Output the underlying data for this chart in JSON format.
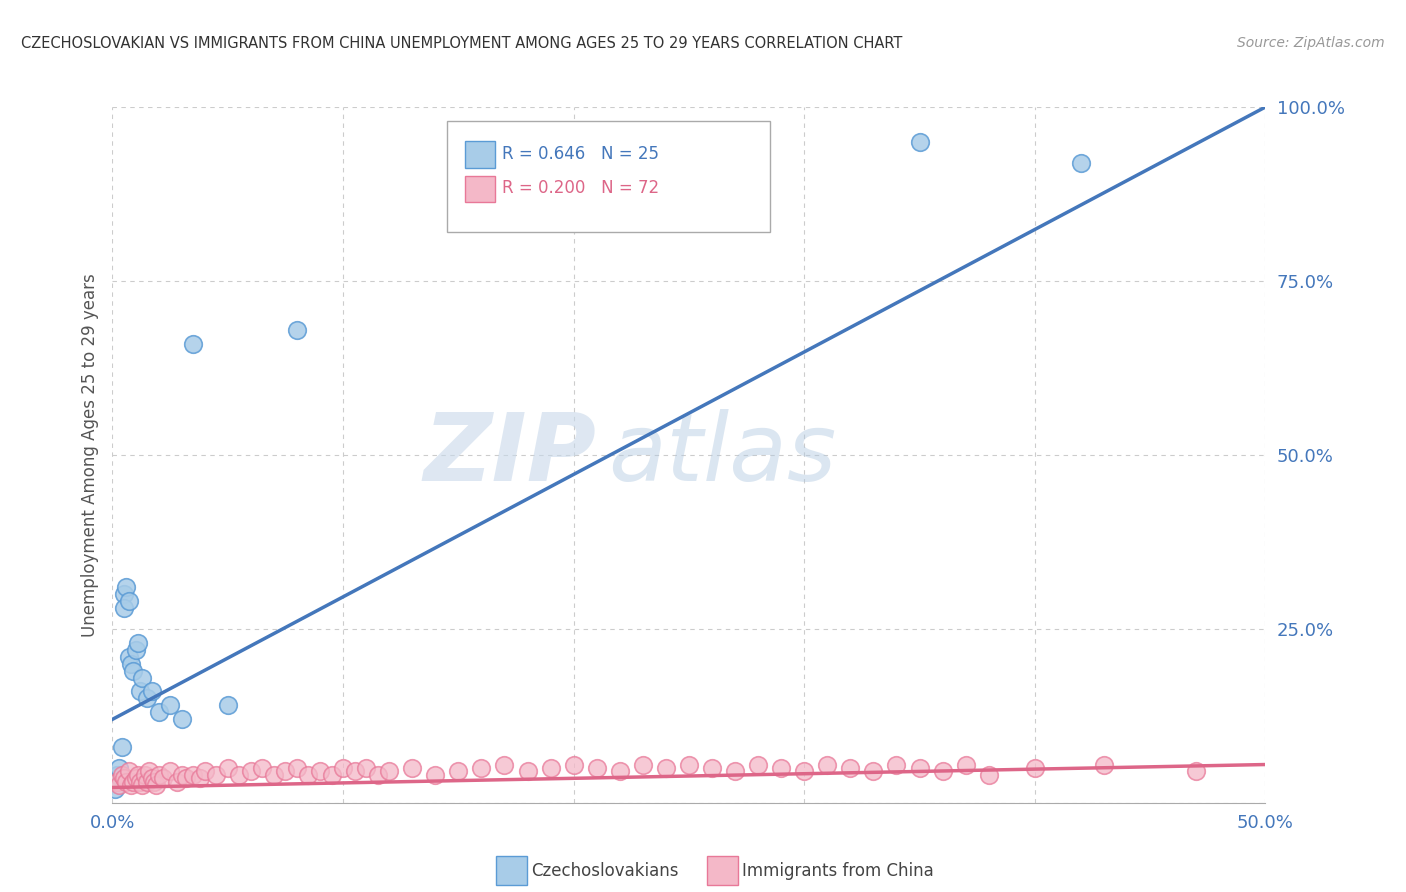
{
  "title": "CZECHOSLOVAKIAN VS IMMIGRANTS FROM CHINA UNEMPLOYMENT AMONG AGES 25 TO 29 YEARS CORRELATION CHART",
  "source": "Source: ZipAtlas.com",
  "ylabel": "Unemployment Among Ages 25 to 29 years",
  "xlim": [
    0.0,
    0.5
  ],
  "ylim": [
    0.0,
    1.0
  ],
  "xticks": [
    0.0,
    0.5
  ],
  "yticks": [
    0.25,
    0.5,
    0.75,
    1.0
  ],
  "xtick_labels": [
    "0.0%",
    "50.0%"
  ],
  "ytick_labels": [
    "25.0%",
    "50.0%",
    "75.0%",
    "100.0%"
  ],
  "blue_R": 0.646,
  "blue_N": 25,
  "pink_R": 0.2,
  "pink_N": 72,
  "blue_color": "#a8cce8",
  "pink_color": "#f4b8c8",
  "blue_edge_color": "#5b9bd5",
  "pink_edge_color": "#e87898",
  "blue_line_color": "#4477bb",
  "pink_line_color": "#dd6688",
  "watermark_zip": "ZIP",
  "watermark_atlas": "atlas",
  "legend_label_blue": "Czechoslovakians",
  "legend_label_pink": "Immigrants from China",
  "blue_line_x0": 0.0,
  "blue_line_y0": 0.12,
  "blue_line_x1": 0.5,
  "blue_line_y1": 1.0,
  "pink_line_x0": 0.0,
  "pink_line_y0": 0.022,
  "pink_line_x1": 0.5,
  "pink_line_y1": 0.055,
  "blue_points_x": [
    0.001,
    0.002,
    0.003,
    0.004,
    0.005,
    0.005,
    0.006,
    0.007,
    0.007,
    0.008,
    0.009,
    0.01,
    0.011,
    0.012,
    0.013,
    0.015,
    0.017,
    0.02,
    0.025,
    0.03,
    0.035,
    0.05,
    0.08,
    0.35,
    0.42
  ],
  "blue_points_y": [
    0.02,
    0.04,
    0.05,
    0.08,
    0.3,
    0.28,
    0.31,
    0.29,
    0.21,
    0.2,
    0.19,
    0.22,
    0.23,
    0.16,
    0.18,
    0.15,
    0.16,
    0.13,
    0.14,
    0.12,
    0.66,
    0.14,
    0.68,
    0.95,
    0.92
  ],
  "pink_points_x": [
    0.002,
    0.003,
    0.004,
    0.005,
    0.006,
    0.007,
    0.008,
    0.009,
    0.01,
    0.011,
    0.012,
    0.013,
    0.014,
    0.015,
    0.016,
    0.017,
    0.018,
    0.019,
    0.02,
    0.022,
    0.025,
    0.028,
    0.03,
    0.032,
    0.035,
    0.038,
    0.04,
    0.045,
    0.05,
    0.055,
    0.06,
    0.065,
    0.07,
    0.075,
    0.08,
    0.085,
    0.09,
    0.095,
    0.1,
    0.105,
    0.11,
    0.115,
    0.12,
    0.13,
    0.14,
    0.15,
    0.16,
    0.17,
    0.18,
    0.19,
    0.2,
    0.21,
    0.22,
    0.23,
    0.24,
    0.25,
    0.26,
    0.27,
    0.28,
    0.29,
    0.3,
    0.31,
    0.32,
    0.33,
    0.34,
    0.35,
    0.36,
    0.37,
    0.38,
    0.4,
    0.43,
    0.47
  ],
  "pink_points_y": [
    0.03,
    0.025,
    0.04,
    0.035,
    0.03,
    0.045,
    0.025,
    0.03,
    0.035,
    0.04,
    0.03,
    0.025,
    0.04,
    0.03,
    0.045,
    0.035,
    0.03,
    0.025,
    0.04,
    0.035,
    0.045,
    0.03,
    0.04,
    0.035,
    0.04,
    0.035,
    0.045,
    0.04,
    0.05,
    0.04,
    0.045,
    0.05,
    0.04,
    0.045,
    0.05,
    0.04,
    0.045,
    0.04,
    0.05,
    0.045,
    0.05,
    0.04,
    0.045,
    0.05,
    0.04,
    0.045,
    0.05,
    0.055,
    0.045,
    0.05,
    0.055,
    0.05,
    0.045,
    0.055,
    0.05,
    0.055,
    0.05,
    0.045,
    0.055,
    0.05,
    0.045,
    0.055,
    0.05,
    0.045,
    0.055,
    0.05,
    0.045,
    0.055,
    0.04,
    0.05,
    0.055,
    0.045
  ]
}
